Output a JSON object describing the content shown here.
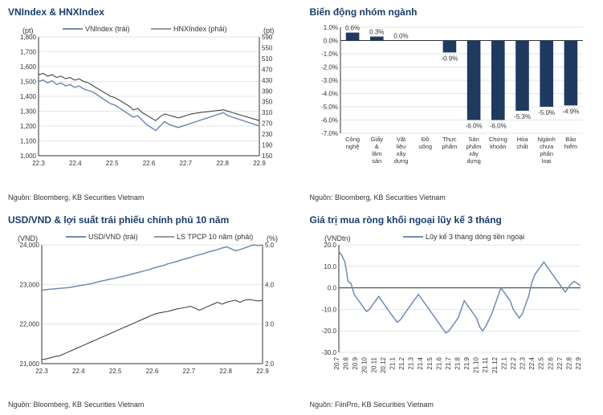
{
  "panel1": {
    "title": "VNIndex & HNXIndex",
    "y_left_label": "(pt)",
    "y_right_label": "(pt)",
    "legend": [
      "VNIndex (trái)",
      "HNXIndex (phải)"
    ],
    "legend_colors": [
      "#6f8bb5",
      "#333333"
    ],
    "line_widths": [
      1.5,
      1
    ],
    "x_ticks": [
      "22.3",
      "22.4",
      "22.5",
      "22.6",
      "22.7",
      "22.8",
      "22.9"
    ],
    "y_left_ticks": [
      1000,
      1100,
      1200,
      1300,
      1400,
      1500,
      1600,
      1700,
      1800
    ],
    "y_right_ticks": [
      150,
      190,
      230,
      270,
      310,
      350,
      390,
      430,
      470,
      510,
      550,
      590
    ],
    "vnindex": [
      1500,
      1510,
      1490,
      1505,
      1480,
      1490,
      1470,
      1480,
      1460,
      1470,
      1450,
      1440,
      1430,
      1410,
      1390,
      1370,
      1350,
      1340,
      1320,
      1300,
      1280,
      1260,
      1270,
      1240,
      1210,
      1190,
      1170,
      1200,
      1230,
      1210,
      1200,
      1190,
      1200,
      1210,
      1220,
      1230,
      1240,
      1250,
      1260,
      1270,
      1280,
      1290,
      1270,
      1260,
      1250,
      1240,
      1230,
      1220,
      1210,
      1200
    ],
    "hnxindex": [
      450,
      455,
      445,
      450,
      440,
      445,
      435,
      440,
      430,
      435,
      425,
      420,
      410,
      400,
      390,
      380,
      370,
      365,
      355,
      345,
      335,
      320,
      325,
      310,
      300,
      290,
      280,
      295,
      305,
      300,
      295,
      290,
      295,
      300,
      305,
      308,
      310,
      312,
      314,
      316,
      318,
      320,
      315,
      310,
      305,
      300,
      295,
      290,
      285,
      280
    ],
    "source": "Nguồn: Bloomberg, KB Securities Vietnam",
    "colors": {
      "primary": "#6f8bb5",
      "secondary": "#333333",
      "grid": "#cccccc",
      "axis": "#333333"
    }
  },
  "panel2": {
    "title": "Biến động nhóm ngành",
    "categories": [
      "Công nghệ",
      "Giấy & lâm sản",
      "Vật liệu xây dựng",
      "Đồ uống",
      "Thực phẩm",
      "Sản phẩm xây dựng",
      "Chứng khoán",
      "Hóa chất",
      "Ngành chưa phân loại",
      "Bảo hiểm"
    ],
    "values": [
      0.6,
      0.3,
      0.0,
      0,
      -0.9,
      -6.0,
      -6.0,
      -5.3,
      -5.0,
      -4.9
    ],
    "value_labels": [
      "0.6%",
      "0.3%",
      "0.0%",
      "",
      "-0.9%",
      "-6.0%",
      "-6.0%",
      "-5.3%",
      "-5.0%",
      "-4.9%"
    ],
    "y_ticks": [
      -7,
      -6,
      -5,
      -4,
      -3,
      -2,
      -1,
      0,
      1
    ],
    "y_tick_labels": [
      "-7.0%",
      "-6.0%",
      "-5.0%",
      "-4.0%",
      "-3.0%",
      "-2.0%",
      "-1.0%",
      "0.0%",
      "1.0%"
    ],
    "bar_color": "#1f3a60",
    "source": "Nguồn: Bloomberg, KB Securities Vietnam",
    "colors": {
      "grid": "#cccccc",
      "axis": "#333333"
    }
  },
  "panel3": {
    "title": "USD/VND & lợi suất trái phiếu chính phủ 10 năm",
    "y_left_label": "(VND)",
    "y_right_label": "(%)",
    "legend": [
      "USD/VND (trái)",
      "LS TPCP 10 năm (phải)"
    ],
    "legend_colors": [
      "#6f8bb5",
      "#333333"
    ],
    "line_widths": [
      1.5,
      1
    ],
    "x_ticks": [
      "22.3",
      "22.4",
      "22.5",
      "22.6",
      "22.7",
      "22.8",
      "22.9"
    ],
    "y_left_ticks": [
      21000,
      22000,
      23000,
      24000
    ],
    "y_right_ticks": [
      2.0,
      3.0,
      4.0,
      5.0
    ],
    "usdvnd": [
      22850,
      22870,
      22880,
      22890,
      22900,
      22910,
      22920,
      22940,
      22960,
      22980,
      23000,
      23020,
      23050,
      23080,
      23100,
      23130,
      23150,
      23180,
      23200,
      23230,
      23260,
      23290,
      23320,
      23350,
      23380,
      23420,
      23450,
      23480,
      23520,
      23550,
      23580,
      23620,
      23650,
      23680,
      23720,
      23750,
      23780,
      23820,
      23850,
      23880,
      23920,
      23950,
      23900,
      23850,
      23880,
      23920,
      23960,
      24000,
      23980,
      24000
    ],
    "gbond": [
      2.1,
      2.12,
      2.15,
      2.18,
      2.2,
      2.25,
      2.3,
      2.35,
      2.4,
      2.45,
      2.5,
      2.55,
      2.6,
      2.65,
      2.7,
      2.75,
      2.8,
      2.85,
      2.9,
      2.95,
      3.0,
      3.05,
      3.1,
      3.15,
      3.2,
      3.25,
      3.28,
      3.3,
      3.32,
      3.35,
      3.38,
      3.4,
      3.42,
      3.45,
      3.4,
      3.35,
      3.4,
      3.45,
      3.5,
      3.55,
      3.5,
      3.55,
      3.58,
      3.6,
      3.55,
      3.6,
      3.62,
      3.6,
      3.58,
      3.6
    ],
    "source": "Nguồn: Bloomberg, KB Securities Vietnam",
    "colors": {
      "primary": "#6f8bb5",
      "secondary": "#333333",
      "grid": "#cccccc",
      "axis": "#333333"
    }
  },
  "panel4": {
    "title": "Giá trị mua ròng khối ngoại lũy kế 3 tháng",
    "y_left_label": "(VNDtn)",
    "legend": [
      "Lũy kế 3 tháng dòng tiền ngoại"
    ],
    "legend_colors": [
      "#6f8bb5"
    ],
    "line_widths": [
      1.5
    ],
    "x_ticks": [
      "20.7",
      "20.8",
      "20.9",
      "20.10",
      "20.11",
      "20.12",
      "21.1",
      "21.2",
      "21.3",
      "21.4",
      "21.5",
      "21.6",
      "21.7",
      "21.8",
      "21.9",
      "21.10",
      "21.11",
      "21.12",
      "22.1",
      "22.2",
      "22.3",
      "22.4",
      "22.5",
      "22.6",
      "22.7",
      "22.8",
      "22.9"
    ],
    "y_ticks": [
      -30,
      -20,
      -10,
      0,
      10,
      20
    ],
    "series": [
      17,
      15,
      12,
      3,
      2,
      -3,
      -5,
      -7,
      -9,
      -11,
      -10,
      -8,
      -6,
      -4,
      -6,
      -8,
      -10,
      -12,
      -14,
      -16,
      -15,
      -13,
      -11,
      -9,
      -7,
      -5,
      -3,
      -5,
      -7,
      -9,
      -11,
      -13,
      -15,
      -17,
      -19,
      -21,
      -20,
      -18,
      -16,
      -14,
      -10,
      -6,
      -8,
      -10,
      -12,
      -14,
      -18,
      -20,
      -18,
      -15,
      -12,
      -8,
      -4,
      0,
      -2,
      -4,
      -6,
      -10,
      -12,
      -14,
      -12,
      -8,
      -4,
      2,
      6,
      8,
      10,
      12,
      10,
      8,
      6,
      4,
      2,
      0,
      -2,
      0,
      2,
      3,
      2,
      1
    ],
    "source": "Nguồn: FiinPro, KB Securities Vietnam",
    "colors": {
      "primary": "#6f8bb5",
      "grid": "#cccccc",
      "axis": "#333333",
      "zero": "#333333"
    }
  }
}
